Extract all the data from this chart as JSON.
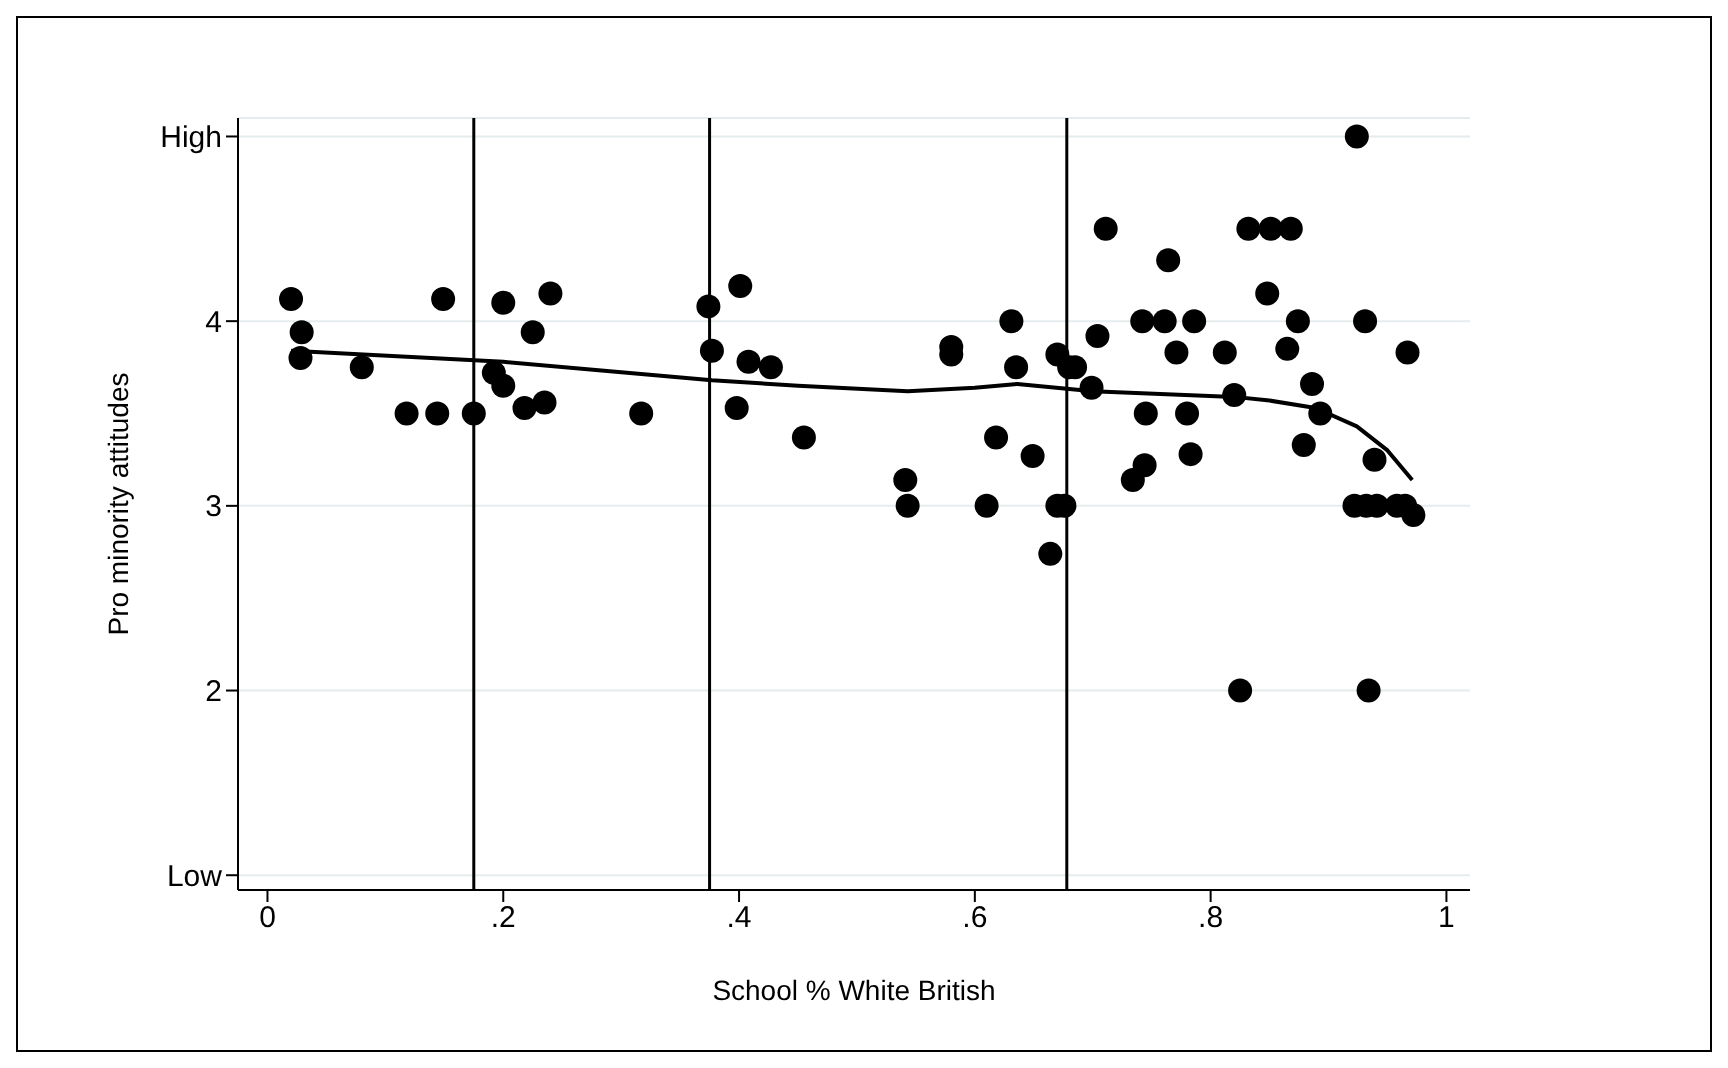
{
  "chart_data": {
    "type": "scatter",
    "xlabel": "School % White British",
    "ylabel": "Pro minority attitudes",
    "xlim": [
      -0.025,
      1.02
    ],
    "ylim": [
      0.92,
      5.1
    ],
    "xticks": [
      {
        "value": 0,
        "label": "0"
      },
      {
        "value": 0.2,
        "label": ".2"
      },
      {
        "value": 0.4,
        "label": ".4"
      },
      {
        "value": 0.6,
        "label": ".6"
      },
      {
        "value": 0.8,
        "label": ".8"
      },
      {
        "value": 1,
        "label": "1"
      }
    ],
    "yticks": [
      {
        "value": 1,
        "label": "Low"
      },
      2,
      3,
      4,
      {
        "value": 5,
        "label": "High"
      }
    ],
    "grid": "y",
    "legend": false,
    "series": [
      {
        "type": "scatter",
        "color": "#000000",
        "marker": "circle",
        "x": [
          0.02,
          0.029,
          0.028,
          0.08,
          0.118,
          0.144,
          0.175,
          0.149,
          0.192,
          0.2,
          0.2,
          0.218,
          0.235,
          0.225,
          0.24,
          0.317,
          0.374,
          0.377,
          0.401,
          0.398,
          0.408,
          0.427,
          0.455,
          0.541,
          0.543,
          0.58,
          0.58,
          0.61,
          0.618,
          0.631,
          0.635,
          0.649,
          0.664,
          0.67,
          0.67,
          0.676,
          0.68,
          0.685,
          0.699,
          0.704,
          0.711,
          0.734,
          0.744,
          0.742,
          0.745,
          0.761,
          0.764,
          0.771,
          0.78,
          0.783,
          0.786,
          0.812,
          0.82,
          0.825,
          0.832,
          0.848,
          0.851,
          0.868,
          0.865,
          0.874,
          0.879,
          0.886,
          0.893,
          0.922,
          0.924,
          0.931,
          0.932,
          0.934,
          0.939,
          0.941,
          0.958,
          0.965,
          0.967,
          0.972
        ],
        "values": [
          4.12,
          3.94,
          3.8,
          3.75,
          3.5,
          3.5,
          3.5,
          4.12,
          3.72,
          3.65,
          4.1,
          3.53,
          3.56,
          3.94,
          4.15,
          3.5,
          4.08,
          3.84,
          4.19,
          3.53,
          3.78,
          3.75,
          3.37,
          3.14,
          3.0,
          3.86,
          3.82,
          3.0,
          3.37,
          4.0,
          3.75,
          3.27,
          2.74,
          3.82,
          3.0,
          3.0,
          3.75,
          3.75,
          3.64,
          3.92,
          4.5,
          3.14,
          3.22,
          4.0,
          3.5,
          4.0,
          4.33,
          3.83,
          3.5,
          3.28,
          4.0,
          3.83,
          3.6,
          2.0,
          4.5,
          4.15,
          4.5,
          4.5,
          3.85,
          4.0,
          3.33,
          3.66,
          3.5,
          3.0,
          5.0,
          4.0,
          3.0,
          2.0,
          3.25,
          3.0,
          3.0,
          3.0,
          3.83,
          2.95
        ]
      },
      {
        "type": "line",
        "color": "#000000",
        "marker": "none",
        "line_style": "solid",
        "x": [
          0.02,
          0.2,
          0.377,
          0.45,
          0.543,
          0.6,
          0.636,
          0.7,
          0.82,
          0.85,
          0.889,
          0.924,
          0.95,
          0.971
        ],
        "values": [
          3.84,
          3.78,
          3.68,
          3.65,
          3.62,
          3.64,
          3.66,
          3.62,
          3.59,
          3.57,
          3.53,
          3.43,
          3.3,
          3.14
        ]
      }
    ],
    "ref_lines": [
      {
        "axis": "x",
        "value": 0.175,
        "color": "#000000"
      },
      {
        "axis": "x",
        "value": 0.375,
        "color": "#000000"
      },
      {
        "axis": "x",
        "value": 0.678,
        "color": "#000000"
      }
    ]
  }
}
